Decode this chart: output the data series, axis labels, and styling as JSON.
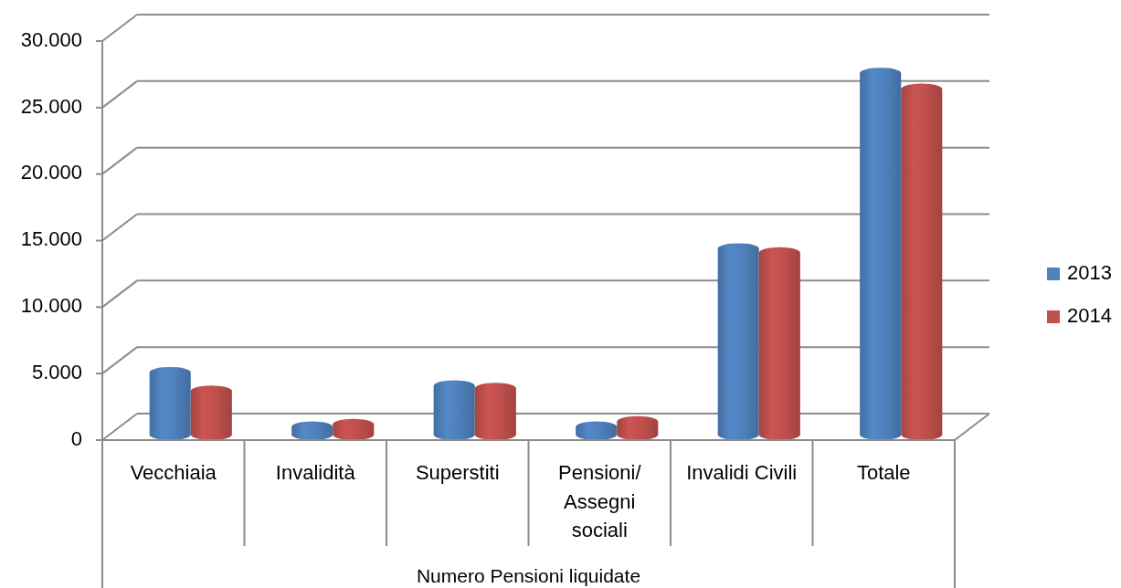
{
  "chart_data": {
    "type": "bar",
    "xlabel": "Numero Pensioni liquidate",
    "categories": [
      "Vecchiaia",
      "Invalidità",
      "Superstiti",
      "Pensioni/ Assegni sociali",
      "Invalidi Civili",
      "Totale"
    ],
    "series": [
      {
        "name": "2013",
        "color": "#4f81bd",
        "values": [
          5500,
          1400,
          4500,
          1400,
          14800,
          28000
        ]
      },
      {
        "name": "2014",
        "color": "#c0504d",
        "values": [
          4100,
          1600,
          4300,
          1800,
          14500,
          26800
        ]
      }
    ],
    "ylim": [
      0,
      30000
    ],
    "yticks": [
      0,
      {
        "value": 5000,
        "label": "5.000"
      },
      {
        "value": 10000,
        "label": "10.000"
      },
      {
        "value": 15000,
        "label": "15.000"
      },
      {
        "value": 20000,
        "label": "20.000"
      },
      {
        "value": 25000,
        "label": "25.000"
      },
      {
        "value": 30000,
        "label": "30.000"
      }
    ],
    "grid": true,
    "legend": "right"
  }
}
